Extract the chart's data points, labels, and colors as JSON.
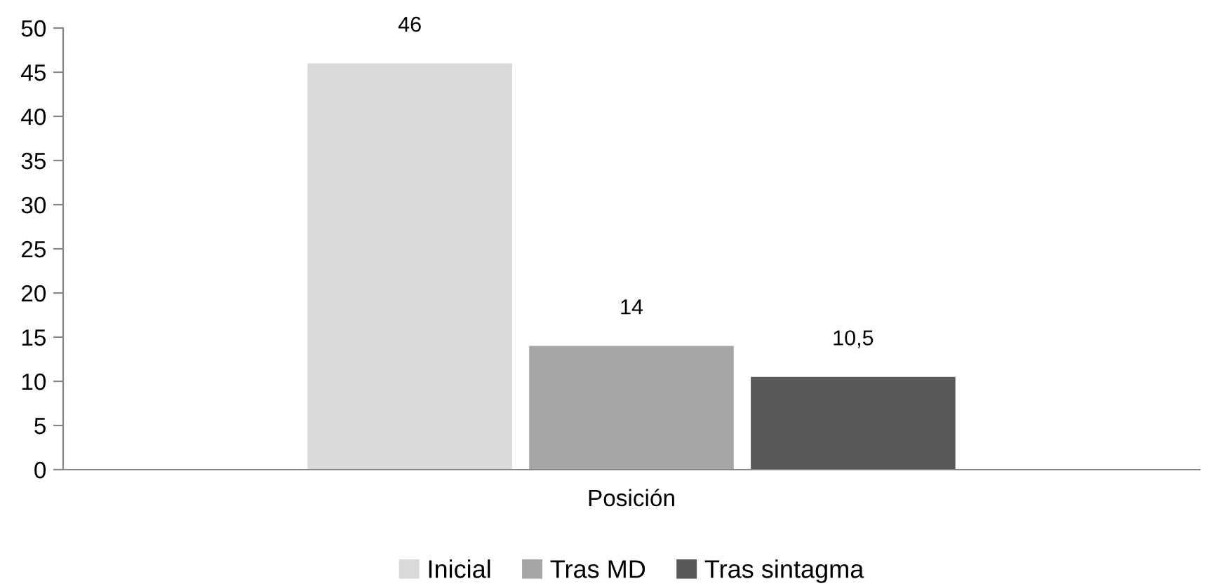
{
  "chart_data": {
    "type": "bar",
    "categories": [
      "Posición"
    ],
    "series": [
      {
        "name": "Inicial",
        "color": "#d9d9d9",
        "values": [
          46
        ],
        "value_labels": [
          "46"
        ]
      },
      {
        "name": "Tras MD",
        "color": "#a6a6a6",
        "values": [
          14
        ],
        "value_labels": [
          "14"
        ]
      },
      {
        "name": "Tras sintagma",
        "color": "#595959",
        "values": [
          10.5
        ],
        "value_labels": [
          "10,5"
        ]
      }
    ],
    "ylim": [
      0,
      50
    ],
    "yticks": [
      0,
      5,
      10,
      15,
      20,
      25,
      30,
      35,
      40,
      45,
      50
    ],
    "grid": false,
    "legend": "bottom"
  }
}
